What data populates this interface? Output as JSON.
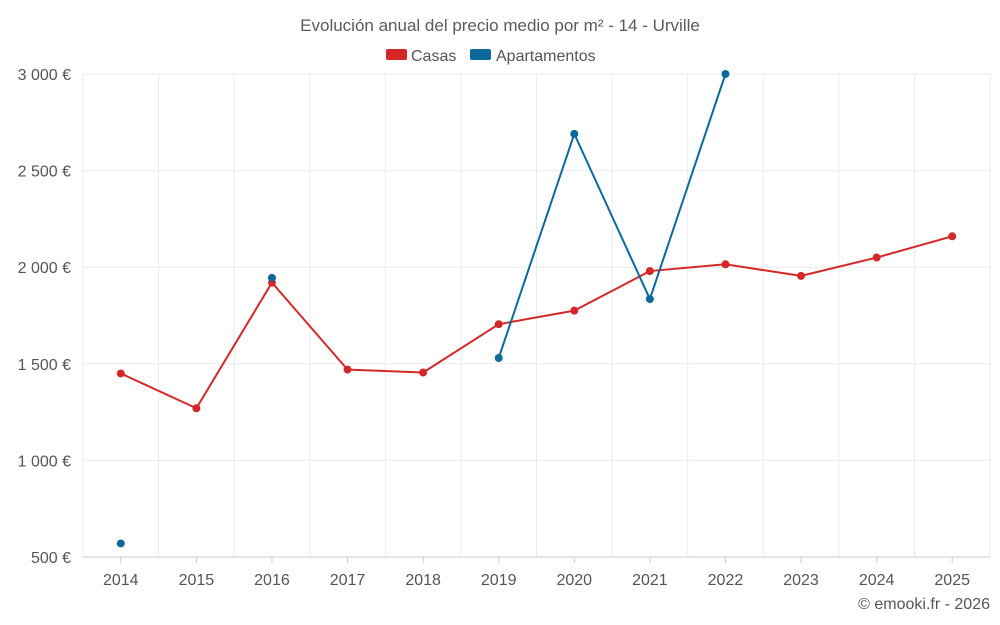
{
  "chart_data": {
    "type": "line",
    "title": "Evolución anual del precio medio por m² - 14 - Urville",
    "categories": [
      "2014",
      "2015",
      "2016",
      "2017",
      "2018",
      "2019",
      "2020",
      "2021",
      "2022",
      "2023",
      "2024",
      "2025"
    ],
    "series": [
      {
        "name": "Casas",
        "color": "#d62728",
        "values": [
          1450,
          1270,
          1920,
          1470,
          1455,
          1705,
          1775,
          1980,
          2015,
          1955,
          2050,
          2160
        ]
      },
      {
        "name": "Apartamentos",
        "color": "#0b6a9b",
        "values": [
          570,
          null,
          1945,
          null,
          null,
          1530,
          2690,
          1835,
          3000,
          null,
          null,
          null
        ]
      }
    ],
    "yticks": [
      500,
      1000,
      1500,
      2000,
      2500,
      3000
    ],
    "ytick_labels": [
      "500 €",
      "1 000 €",
      "1 500 €",
      "2 000 €",
      "2 500 €",
      "3 000 €"
    ],
    "ylim": [
      500,
      3000
    ],
    "xlabel": "",
    "ylabel": "",
    "grid": true,
    "legend_position": "top-center"
  },
  "credit": "© emooki.fr - 2026"
}
